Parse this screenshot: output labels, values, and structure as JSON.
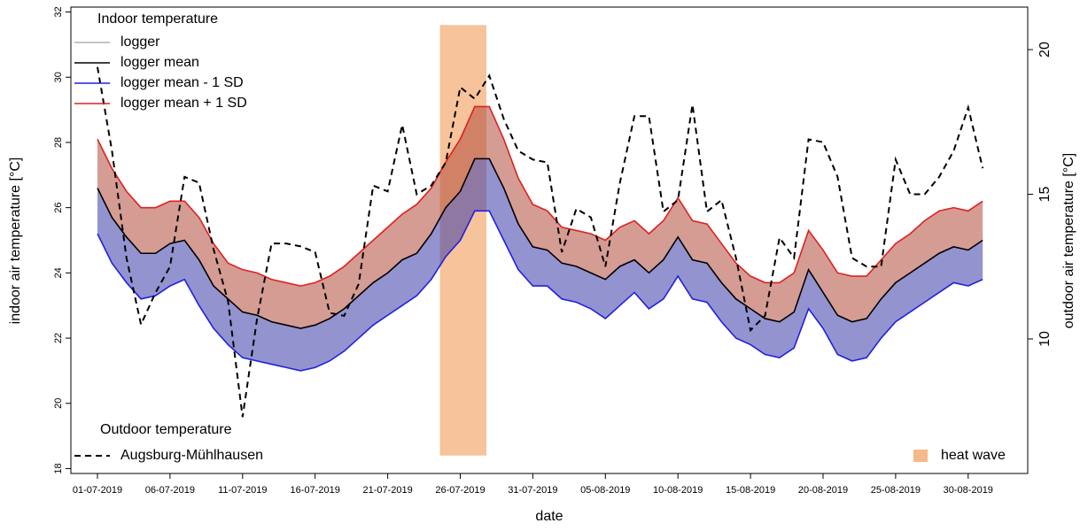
{
  "chart_data": {
    "type": "line",
    "xlabel": "date",
    "ylabel": "indoor air temperature [°C]",
    "y2label": "outdoor air temperature [°C]",
    "legend_title": "Indoor temperature",
    "legend2_title": "Outdoor temperature",
    "legend_loc": "upper left",
    "categories": [
      "01-07-2019",
      null,
      null,
      null,
      null,
      "06-07-2019",
      null,
      null,
      null,
      null,
      "11-07-2019",
      null,
      null,
      null,
      null,
      "16-07-2019",
      null,
      null,
      null,
      null,
      "21-07-2019",
      null,
      null,
      null,
      null,
      "26-07-2019",
      null,
      null,
      null,
      null,
      "31-07-2019",
      null,
      null,
      null,
      null,
      "05-08-2019",
      null,
      null,
      null,
      null,
      "10-08-2019",
      null,
      null,
      null,
      null,
      "15-08-2019",
      null,
      null,
      null,
      null,
      "20-08-2019",
      null,
      null,
      null,
      null,
      "25-08-2019",
      null,
      null,
      null,
      null,
      "30-08-2019",
      null
    ],
    "ylim": [
      17.85,
      32.15
    ],
    "yticks": [
      18,
      20,
      22,
      24,
      26,
      28,
      30,
      32
    ],
    "y2lim": [
      5.35,
      21.47
    ],
    "y2ticks": [
      10,
      15,
      20
    ],
    "series": [
      {
        "name": "logger",
        "color": "#b0b0b0"
      },
      {
        "name": "logger mean",
        "color": "#000000",
        "values": [
          26.6,
          25.7,
          25.1,
          24.6,
          24.6,
          24.9,
          25.0,
          24.4,
          23.6,
          23.2,
          22.8,
          22.7,
          22.5,
          22.4,
          22.3,
          22.4,
          22.6,
          22.9,
          23.3,
          23.7,
          24.0,
          24.4,
          24.6,
          25.2,
          26.0,
          26.5,
          27.5,
          27.5,
          26.6,
          25.5,
          24.8,
          24.7,
          24.3,
          24.2,
          24.0,
          23.8,
          24.2,
          24.4,
          24.0,
          24.4,
          25.1,
          24.4,
          24.3,
          23.7,
          23.2,
          22.9,
          22.6,
          22.5,
          22.8,
          24.1,
          23.4,
          22.7,
          22.5,
          22.6,
          23.2,
          23.7,
          24.0,
          24.3,
          24.6,
          24.8,
          24.7,
          25.0
        ]
      },
      {
        "name": "logger mean - 1 SD",
        "color": "#2020e0",
        "values": [
          25.2,
          24.3,
          23.7,
          23.2,
          23.3,
          23.6,
          23.8,
          23.0,
          22.3,
          21.8,
          21.4,
          21.3,
          21.2,
          21.1,
          21.0,
          21.1,
          21.3,
          21.6,
          22.0,
          22.4,
          22.7,
          23.0,
          23.3,
          23.8,
          24.5,
          25.0,
          25.9,
          25.9,
          25.0,
          24.1,
          23.6,
          23.6,
          23.2,
          23.1,
          22.9,
          22.6,
          23.0,
          23.4,
          22.9,
          23.2,
          23.9,
          23.2,
          23.1,
          22.5,
          22.0,
          21.8,
          21.5,
          21.4,
          21.7,
          22.9,
          22.3,
          21.5,
          21.3,
          21.4,
          22.0,
          22.5,
          22.8,
          23.1,
          23.4,
          23.7,
          23.6,
          23.8
        ]
      },
      {
        "name": "logger mean + 1 SD",
        "color": "#e02020",
        "values": [
          28.1,
          27.2,
          26.5,
          26.0,
          26.0,
          26.2,
          26.2,
          25.7,
          24.9,
          24.3,
          24.1,
          24.0,
          23.8,
          23.7,
          23.6,
          23.7,
          23.9,
          24.2,
          24.6,
          25.0,
          25.4,
          25.8,
          26.1,
          26.6,
          27.4,
          28.1,
          29.1,
          29.1,
          28.1,
          26.9,
          26.1,
          25.9,
          25.4,
          25.3,
          25.2,
          25.0,
          25.4,
          25.6,
          25.2,
          25.6,
          26.3,
          25.6,
          25.5,
          24.9,
          24.3,
          23.9,
          23.7,
          23.7,
          24.0,
          25.3,
          24.7,
          24.0,
          23.9,
          23.9,
          24.4,
          24.9,
          25.2,
          25.6,
          25.9,
          26.0,
          25.9,
          26.2
        ]
      },
      {
        "name": "Augsburg-Mühlhausen",
        "color": "#000000",
        "dashed": true,
        "axis": "y2",
        "values": [
          19.4,
          16.5,
          12.8,
          10.5,
          11.6,
          12.5,
          15.6,
          15.4,
          13.1,
          11.3,
          7.3,
          10.7,
          13.3,
          13.3,
          13.2,
          13.0,
          10.9,
          10.8,
          11.9,
          15.3,
          15.1,
          17.4,
          15.0,
          15.3,
          16.1,
          18.7,
          18.3,
          19.1,
          17.6,
          16.5,
          16.2,
          16.1,
          13.0,
          14.5,
          14.2,
          12.5,
          15.4,
          17.7,
          17.7,
          14.4,
          14.8,
          18.1,
          14.4,
          14.8,
          12.8,
          10.3,
          10.8,
          13.5,
          12.8,
          16.9,
          16.8,
          15.6,
          12.8,
          12.5,
          12.5,
          16.2,
          15.0,
          15.0,
          15.6,
          16.5,
          18.0,
          15.9
        ]
      }
    ],
    "heat_wave": {
      "label": "heat wave",
      "color": "#f5b98a",
      "x": [
        23.6,
        26.8
      ],
      "ylim": [
        18.4,
        31.6
      ]
    }
  }
}
